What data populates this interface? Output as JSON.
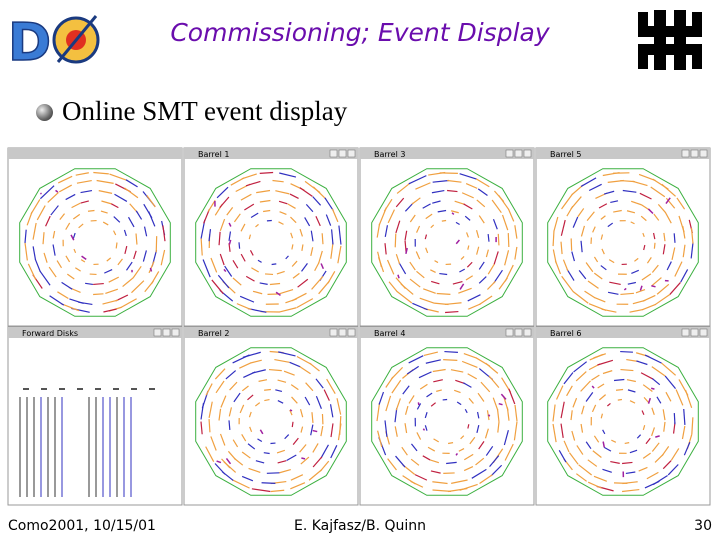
{
  "header": {
    "title": "Commissioning; Event Display"
  },
  "bullet": "Online SMT event display",
  "panels": [
    {
      "title": "Barrel 1",
      "col": 1,
      "row": 0
    },
    {
      "title": "Barrel 3",
      "col": 2,
      "row": 0
    },
    {
      "title": "Barrel 5",
      "col": 3,
      "row": 0
    },
    {
      "title": "Forward Disks",
      "col": 0,
      "row": 1
    },
    {
      "title": "Barrel 2",
      "col": 1,
      "row": 1
    },
    {
      "title": "Barrel 4",
      "col": 2,
      "row": 1
    },
    {
      "title": "Barrel 6",
      "col": 3,
      "row": 1
    }
  ],
  "footer": {
    "left": "Como2001, 10/15/01",
    "center": "E. Kajfasz/B. Quinn",
    "page": "30"
  }
}
